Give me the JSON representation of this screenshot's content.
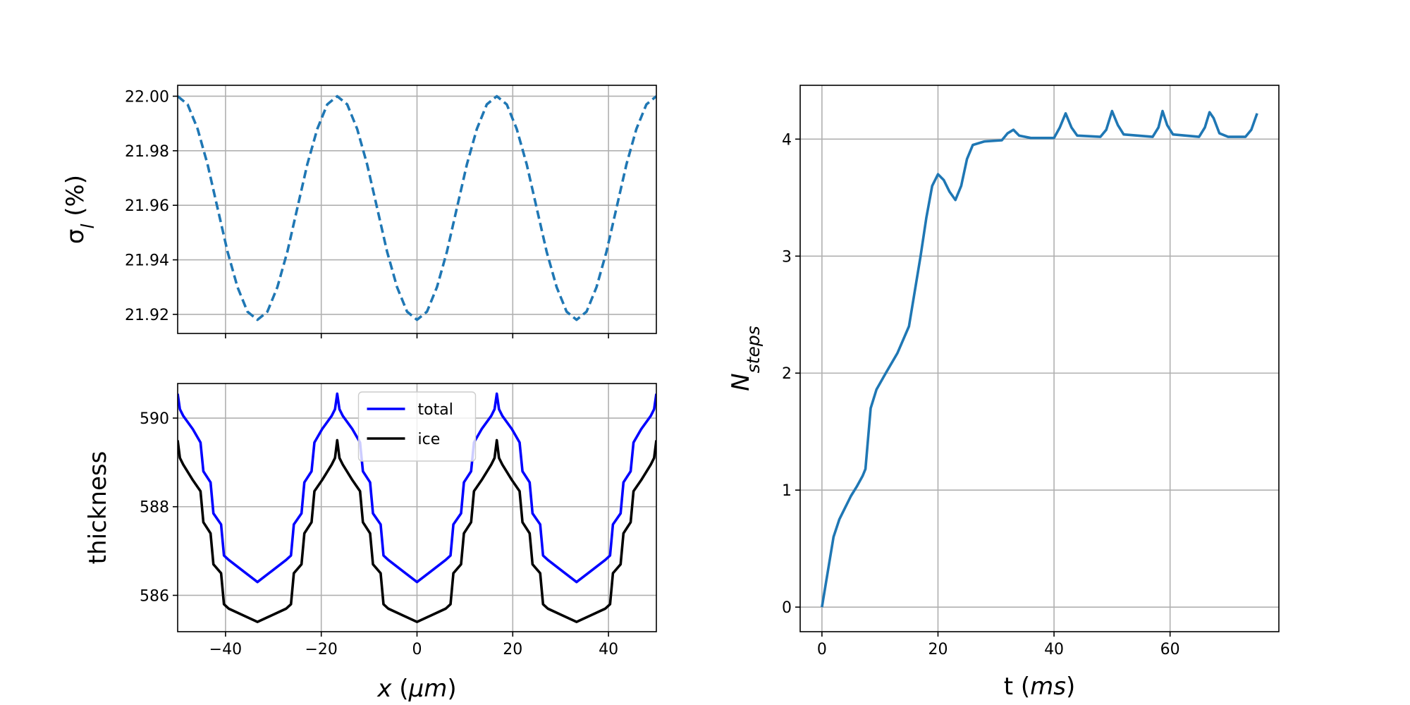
{
  "chart_data": [
    {
      "type": "line",
      "ylabel": [
        "σ",
        "l",
        " (%)"
      ],
      "x": [
        -50,
        -47.92,
        -45.83,
        -43.75,
        -41.67,
        -39.58,
        -37.5,
        -35.42,
        -33.33,
        -31.25,
        -29.17,
        -27.08,
        -25,
        -22.92,
        -20.83,
        -18.75,
        -16.67,
        -14.58,
        -12.5,
        -10.42,
        -8.33,
        -6.25,
        -4.17,
        -2.08,
        0,
        2.08,
        4.17,
        6.25,
        8.33,
        10.42,
        12.5,
        14.58,
        16.67,
        18.75,
        20.83,
        22.92,
        25,
        27.08,
        29.17,
        31.25,
        33.33,
        35.42,
        37.5,
        39.58,
        41.67,
        43.75,
        45.83,
        47.92,
        50
      ],
      "values": [
        22.0,
        21.997,
        21.988,
        21.975,
        21.959,
        21.943,
        21.93,
        21.921,
        21.918,
        21.921,
        21.93,
        21.943,
        21.959,
        21.975,
        21.988,
        21.997,
        22.0,
        21.997,
        21.988,
        21.975,
        21.959,
        21.943,
        21.93,
        21.921,
        21.918,
        21.921,
        21.93,
        21.943,
        21.959,
        21.975,
        21.988,
        21.997,
        22.0,
        21.997,
        21.988,
        21.975,
        21.959,
        21.943,
        21.93,
        21.921,
        21.918,
        21.921,
        21.93,
        21.943,
        21.959,
        21.975,
        21.988,
        21.997,
        22.0
      ],
      "color": "#1f77b4",
      "linestyle": "dashed",
      "xlim": [
        -50,
        50
      ],
      "xticks": [
        -40,
        -20,
        0,
        20,
        40
      ],
      "ylim": [
        21.913,
        22.004
      ],
      "yticks": [
        21.92,
        21.94,
        21.96,
        21.98,
        {
          "value": 22.0,
          "label": "22.00"
        }
      ],
      "grid": true
    },
    {
      "type": "line",
      "xlabel": [
        "x",
        " (",
        "μm",
        ")"
      ],
      "ylabel": [
        "thickness"
      ],
      "x": [
        -50,
        -49.53,
        -48.83,
        -46.83,
        -45.23,
        -44.63,
        -43.13,
        -42.53,
        -40.93,
        -40.33,
        -39.33,
        -36.33,
        -33.33,
        -30.33,
        -27.33,
        -26.33,
        -25.73,
        -24.13,
        -23.53,
        -22.03,
        -21.43,
        -19.83,
        -17.83,
        -17.13,
        -16.67,
        -16.2,
        -15.5,
        -13.5,
        -11.9,
        -11.3,
        -9.8,
        -9.2,
        -7.6,
        -7,
        -6,
        -3,
        0,
        3,
        6,
        7,
        7.6,
        9.2,
        9.8,
        11.3,
        11.9,
        13.5,
        15.5,
        16.2,
        16.67,
        17.13,
        17.83,
        19.83,
        21.43,
        22.03,
        23.53,
        24.13,
        25.73,
        26.33,
        27.33,
        30.33,
        33.33,
        36.33,
        39.33,
        40.33,
        40.93,
        42.53,
        43.13,
        44.63,
        45.23,
        46.83,
        48.83,
        49.53,
        50
      ],
      "series": [
        {
          "name": "total",
          "color": "#0000ff",
          "values": [
            590.55,
            590.2,
            590.05,
            589.75,
            589.45,
            588.8,
            588.55,
            587.85,
            587.6,
            586.9,
            586.8,
            586.55,
            586.3,
            586.55,
            586.8,
            586.9,
            587.6,
            587.85,
            588.55,
            588.8,
            589.45,
            589.75,
            590.05,
            590.2,
            590.55,
            590.2,
            590.05,
            589.75,
            589.45,
            588.8,
            588.55,
            587.85,
            587.6,
            586.9,
            586.8,
            586.55,
            586.3,
            586.55,
            586.8,
            586.9,
            587.6,
            587.85,
            588.55,
            588.8,
            589.45,
            589.75,
            590.05,
            590.2,
            590.55,
            590.2,
            590.05,
            589.75,
            589.45,
            588.8,
            588.55,
            587.85,
            587.6,
            586.9,
            586.8,
            586.55,
            586.3,
            586.55,
            586.8,
            586.9,
            587.6,
            587.85,
            588.55,
            588.8,
            589.45,
            589.75,
            590.05,
            590.2,
            590.55
          ]
        },
        {
          "name": "ice",
          "color": "#000000",
          "values": [
            589.5,
            589.1,
            588.95,
            588.6,
            588.35,
            587.65,
            587.4,
            586.7,
            586.5,
            585.8,
            585.7,
            585.55,
            585.4,
            585.55,
            585.7,
            585.8,
            586.5,
            586.7,
            587.4,
            587.65,
            588.35,
            588.6,
            588.95,
            589.1,
            589.5,
            589.1,
            588.95,
            588.6,
            588.35,
            587.65,
            587.4,
            586.7,
            586.5,
            585.8,
            585.7,
            585.55,
            585.4,
            585.55,
            585.7,
            585.8,
            586.5,
            586.7,
            587.4,
            587.65,
            588.35,
            588.6,
            588.95,
            589.1,
            589.5,
            589.1,
            588.95,
            588.6,
            588.35,
            587.65,
            587.4,
            586.7,
            586.5,
            585.8,
            585.7,
            585.55,
            585.4,
            585.55,
            585.7,
            585.8,
            586.5,
            586.7,
            587.4,
            587.65,
            588.35,
            588.6,
            588.95,
            589.1,
            589.5
          ]
        }
      ],
      "xlim": [
        -50,
        50
      ],
      "xticks": [
        {
          "value": -40,
          "label": "−40"
        },
        {
          "value": -20,
          "label": "−20"
        },
        0,
        20,
        40
      ],
      "ylim": [
        585.18,
        590.78
      ],
      "yticks": [
        586,
        588,
        590
      ],
      "grid": true,
      "legend": "upper center"
    },
    {
      "type": "line",
      "xlabel": [
        "t (",
        "ms",
        ")"
      ],
      "ylabel": [
        "N",
        "steps"
      ],
      "x": [
        0,
        1,
        2,
        3,
        4,
        5,
        6,
        7,
        7.5,
        8.4,
        9.4,
        11,
        13,
        15,
        16,
        17,
        18,
        19,
        20,
        21,
        22,
        23,
        24,
        25,
        26,
        28,
        31,
        32,
        33,
        34,
        36,
        40,
        41,
        42,
        43,
        44,
        48,
        49,
        50,
        51,
        52,
        57,
        58,
        58.7,
        59.5,
        60.5,
        65,
        66,
        66.8,
        67.5,
        68.5,
        70,
        73,
        74,
        75
      ],
      "values": [
        0,
        0.3,
        0.6,
        0.75,
        0.85,
        0.95,
        1.03,
        1.12,
        1.18,
        1.7,
        1.86,
        2.0,
        2.17,
        2.4,
        2.7,
        3.0,
        3.33,
        3.6,
        3.7,
        3.65,
        3.55,
        3.48,
        3.6,
        3.83,
        3.95,
        3.98,
        3.99,
        4.05,
        4.08,
        4.03,
        4.01,
        4.01,
        4.1,
        4.22,
        4.1,
        4.03,
        4.02,
        4.08,
        4.24,
        4.12,
        4.04,
        4.02,
        4.1,
        4.24,
        4.12,
        4.04,
        4.02,
        4.1,
        4.23,
        4.18,
        4.05,
        4.02,
        4.02,
        4.08,
        4.22
      ],
      "color": "#1f77b4",
      "linestyle": "solid",
      "xlim": [
        -3.75,
        78.75
      ],
      "xticks": [
        0,
        20,
        40,
        60
      ],
      "ylim": [
        -0.21,
        4.46
      ],
      "yticks": [
        0,
        1,
        2,
        3,
        4
      ],
      "grid": true
    }
  ]
}
